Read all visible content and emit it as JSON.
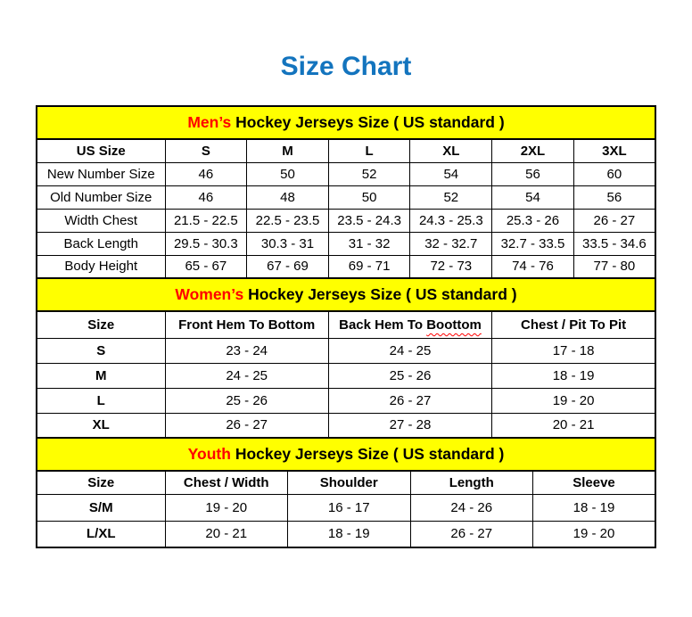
{
  "page": {
    "title": "Size Chart"
  },
  "colors": {
    "title_blue": "#1374BE",
    "header_bg": "#FFFF00",
    "accent_red": "#FF0000",
    "border": "#000000"
  },
  "tables": {
    "men": {
      "header": {
        "accent": "Men’s",
        "rest": "Hockey Jerseys Size ( US standard )"
      },
      "columns": [
        "US Size",
        "S",
        "M",
        "L",
        "XL",
        "2XL",
        "3XL"
      ],
      "rows": [
        {
          "label": "New Number Size",
          "values": [
            "46",
            "50",
            "52",
            "54",
            "56",
            "60"
          ]
        },
        {
          "label": "Old Number Size",
          "values": [
            "46",
            "48",
            "50",
            "52",
            "54",
            "56"
          ]
        },
        {
          "label": "Width Chest",
          "values": [
            "21.5 - 22.5",
            "22.5 - 23.5",
            "23.5 - 24.3",
            "24.3 - 25.3",
            "25.3 - 26",
            "26 - 27"
          ]
        },
        {
          "label": "Back Length",
          "values": [
            "29.5 - 30.3",
            "30.3 - 31",
            "31 - 32",
            "32 - 32.7",
            "32.7 - 33.5",
            "33.5 - 34.6"
          ]
        },
        {
          "label": "Body Height",
          "values": [
            "65 - 67",
            "67 - 69",
            "69 - 71",
            "72 - 73",
            "74 - 76",
            "77 - 80"
          ]
        }
      ]
    },
    "women": {
      "header": {
        "accent": "Women’s",
        "rest": "Hockey Jerseys Size ( US standard )"
      },
      "columns": [
        "Size",
        "Front Hem To Bottom",
        "Back Hem To Boottom",
        "Chest / Pit To Pit"
      ],
      "back_hem_prefix": "Back Hem To ",
      "back_hem_wavy_word": "Boottom",
      "rows": [
        {
          "label": "S",
          "values": [
            "23 - 24",
            "24 - 25",
            "17 - 18"
          ]
        },
        {
          "label": "M",
          "values": [
            "24 - 25",
            "25 - 26",
            "18 - 19"
          ]
        },
        {
          "label": "L",
          "values": [
            "25 - 26",
            "26 - 27",
            "19 - 20"
          ]
        },
        {
          "label": "XL",
          "values": [
            "26 - 27",
            "27 - 28",
            "20 - 21"
          ]
        }
      ]
    },
    "youth": {
      "header": {
        "accent": "Youth",
        "rest": "Hockey Jerseys Size ( US standard )"
      },
      "columns": [
        "Size",
        "Chest / Width",
        "Shoulder",
        "Length",
        "Sleeve"
      ],
      "rows": [
        {
          "label": "S/M",
          "values": [
            "19 - 20",
            "16 - 17",
            "24 - 26",
            "18 - 19"
          ]
        },
        {
          "label": "L/XL",
          "values": [
            "20 - 21",
            "18 - 19",
            "26 - 27",
            "19 - 20"
          ]
        }
      ]
    }
  }
}
